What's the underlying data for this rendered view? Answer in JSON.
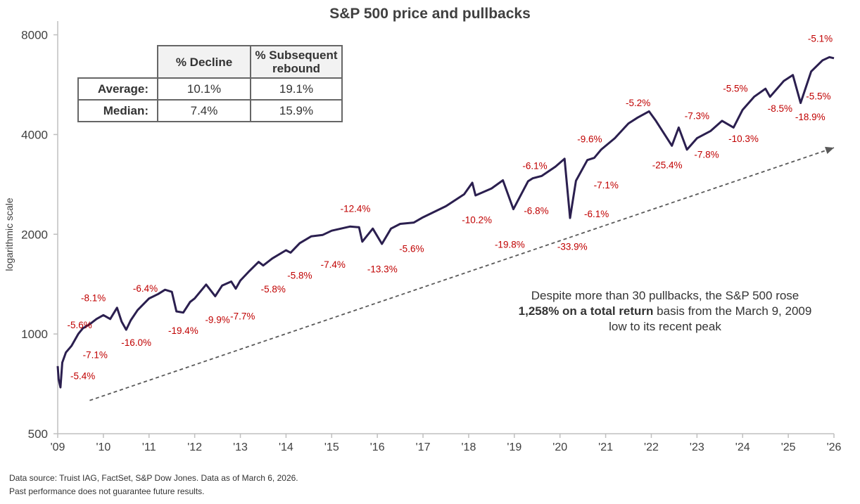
{
  "chart_data": {
    "type": "line",
    "title": "S&P 500 price and pullbacks",
    "ylabel": "logarithmic scale",
    "xlabel": "",
    "yscale": "log",
    "ylim": [
      500,
      8800
    ],
    "xlim": [
      2009.0,
      2026.0
    ],
    "yticks": [
      500,
      1000,
      2000,
      4000,
      8000
    ],
    "ytick_labels": [
      "500",
      "1000",
      "2000",
      "4000",
      "8000"
    ],
    "xticks": [
      2009,
      2010,
      2011,
      2012,
      2013,
      2014,
      2015,
      2016,
      2017,
      2018,
      2019,
      2020,
      2021,
      2022,
      2023,
      2024,
      2025,
      2026
    ],
    "xtick_labels": [
      "'09",
      "'10",
      "'11",
      "'12",
      "'13",
      "'14",
      "'15",
      "'16",
      "'17",
      "'18",
      "'19",
      "'20",
      "'21",
      "'22",
      "'23",
      "'24",
      "'25",
      "'26"
    ],
    "series": [
      {
        "name": "S&P 500 price",
        "color": "#2b1f4f",
        "x": [
          2009.0,
          2009.02,
          2009.06,
          2009.1,
          2009.18,
          2009.3,
          2009.45,
          2009.55,
          2009.7,
          2009.85,
          2010.0,
          2010.15,
          2010.3,
          2010.4,
          2010.5,
          2010.6,
          2010.75,
          2011.0,
          2011.2,
          2011.35,
          2011.5,
          2011.6,
          2011.75,
          2011.9,
          2012.0,
          2012.25,
          2012.45,
          2012.6,
          2012.8,
          2012.9,
          2013.0,
          2013.2,
          2013.4,
          2013.5,
          2013.7,
          2014.0,
          2014.1,
          2014.3,
          2014.55,
          2014.8,
          2015.0,
          2015.4,
          2015.6,
          2015.67,
          2015.9,
          2016.1,
          2016.3,
          2016.5,
          2016.8,
          2017.0,
          2017.5,
          2017.9,
          2018.08,
          2018.15,
          2018.5,
          2018.75,
          2018.98,
          2019.3,
          2019.4,
          2019.6,
          2019.9,
          2020.1,
          2020.22,
          2020.35,
          2020.6,
          2020.75,
          2020.9,
          2021.2,
          2021.5,
          2021.7,
          2021.95,
          2022.1,
          2022.45,
          2022.6,
          2022.78,
          2023.0,
          2023.3,
          2023.55,
          2023.8,
          2024.0,
          2024.25,
          2024.5,
          2024.6,
          2024.9,
          2025.1,
          2025.27,
          2025.5,
          2025.75,
          2025.9,
          2026.0
        ],
        "values": [
          800,
          730,
          690,
          820,
          880,
          920,
          1000,
          1040,
          1070,
          1110,
          1140,
          1110,
          1200,
          1090,
          1030,
          1100,
          1180,
          1280,
          1320,
          1360,
          1340,
          1170,
          1160,
          1250,
          1280,
          1410,
          1300,
          1400,
          1440,
          1370,
          1450,
          1550,
          1650,
          1610,
          1690,
          1790,
          1760,
          1880,
          1970,
          1990,
          2050,
          2110,
          2100,
          1900,
          2080,
          1870,
          2080,
          2150,
          2170,
          2250,
          2430,
          2640,
          2860,
          2620,
          2750,
          2910,
          2380,
          2890,
          2950,
          3000,
          3200,
          3380,
          2240,
          2900,
          3350,
          3400,
          3600,
          3900,
          4320,
          4500,
          4700,
          4400,
          3700,
          4200,
          3600,
          3900,
          4100,
          4400,
          4200,
          4750,
          5200,
          5500,
          5200,
          5800,
          6050,
          4980,
          6200,
          6700,
          6850,
          6800
        ]
      }
    ],
    "pullbacks": [
      {
        "label": "-5.6%",
        "at": [
          2009.48,
          1040
        ]
      },
      {
        "label": "-8.1%",
        "at": [
          2009.78,
          1255
        ]
      },
      {
        "label": "-7.1%",
        "at": [
          2009.82,
          845
        ]
      },
      {
        "label": "-5.4%",
        "at": [
          2009.55,
          730
        ]
      },
      {
        "label": "-16.0%",
        "at": [
          2010.72,
          920
        ]
      },
      {
        "label": "-6.4%",
        "at": [
          2010.92,
          1340
        ]
      },
      {
        "label": "-19.4%",
        "at": [
          2011.75,
          1000
        ]
      },
      {
        "label": "-9.9%",
        "at": [
          2012.5,
          1080
        ]
      },
      {
        "label": "-7.7%",
        "at": [
          2013.05,
          1105
        ]
      },
      {
        "label": "-5.8%",
        "at": [
          2013.72,
          1335
        ]
      },
      {
        "label": "-5.8%",
        "at": [
          2014.3,
          1470
        ]
      },
      {
        "label": "-7.4%",
        "at": [
          2015.03,
          1585
        ]
      },
      {
        "label": "-12.4%",
        "at": [
          2015.52,
          2335
        ]
      },
      {
        "label": "-13.3%",
        "at": [
          2016.11,
          1535
        ]
      },
      {
        "label": "-5.6%",
        "at": [
          2016.75,
          1770
        ]
      },
      {
        "label": "-10.2%",
        "at": [
          2018.18,
          2160
        ]
      },
      {
        "label": "-19.8%",
        "at": [
          2018.9,
          1820
        ]
      },
      {
        "label": "-6.8%",
        "at": [
          2019.48,
          2300
        ]
      },
      {
        "label": "-6.1%",
        "at": [
          2019.45,
          3150
        ]
      },
      {
        "label": "-33.9%",
        "at": [
          2020.27,
          1795
        ]
      },
      {
        "label": "-6.1%",
        "at": [
          2020.8,
          2250
        ]
      },
      {
        "label": "-7.1%",
        "at": [
          2021.01,
          2750
        ]
      },
      {
        "label": "-9.6%",
        "at": [
          2020.65,
          3790
        ]
      },
      {
        "label": "-5.2%",
        "at": [
          2021.71,
          4875
        ]
      },
      {
        "label": "-25.4%",
        "at": [
          2022.35,
          3160
        ]
      },
      {
        "label": "-7.3%",
        "at": [
          2023.0,
          4450
        ]
      },
      {
        "label": "-7.8%",
        "at": [
          2023.21,
          3400
        ]
      },
      {
        "label": "-10.3%",
        "at": [
          2024.02,
          3800
        ]
      },
      {
        "label": "-5.5%",
        "at": [
          2023.84,
          5380
        ]
      },
      {
        "label": "-8.5%",
        "at": [
          2024.82,
          4680
        ]
      },
      {
        "label": "-5.5%",
        "at": [
          2025.66,
          5100
        ]
      },
      {
        "label": "-18.9%",
        "at": [
          2025.48,
          4420
        ]
      },
      {
        "label": "-5.1%",
        "at": [
          2025.7,
          7620
        ]
      }
    ],
    "trend_arrow": {
      "from": [
        2009.7,
        630
      ],
      "to": [
        2026.0,
        3650
      ],
      "style": "dashed"
    }
  },
  "table": {
    "headers": [
      "% Decline",
      "% Subsequent rebound"
    ],
    "header_line1": "% Subsequent",
    "header_line2": "rebound",
    "rows": [
      {
        "label": "Average:",
        "decline": "10.1%",
        "rebound": "19.1%"
      },
      {
        "label": "Median:",
        "decline": "7.4%",
        "rebound": "15.9%"
      }
    ]
  },
  "note": {
    "part1": "Despite more than 30 pullbacks, the S&P 500 rose ",
    "bold": "1,258% on a total return",
    "part2": " basis from the March 9, 2009 low to its recent peak"
  },
  "footer": {
    "source": "Data source: Truist IAG, FactSet, S&P Dow Jones. Data as of March 6, 2026.",
    "disclaimer": "Past performance does not guarantee future results."
  },
  "colors": {
    "line": "#2b1f4f",
    "pullback": "#c00000",
    "axis": "#bfbfbf",
    "arrow": "#595959"
  }
}
